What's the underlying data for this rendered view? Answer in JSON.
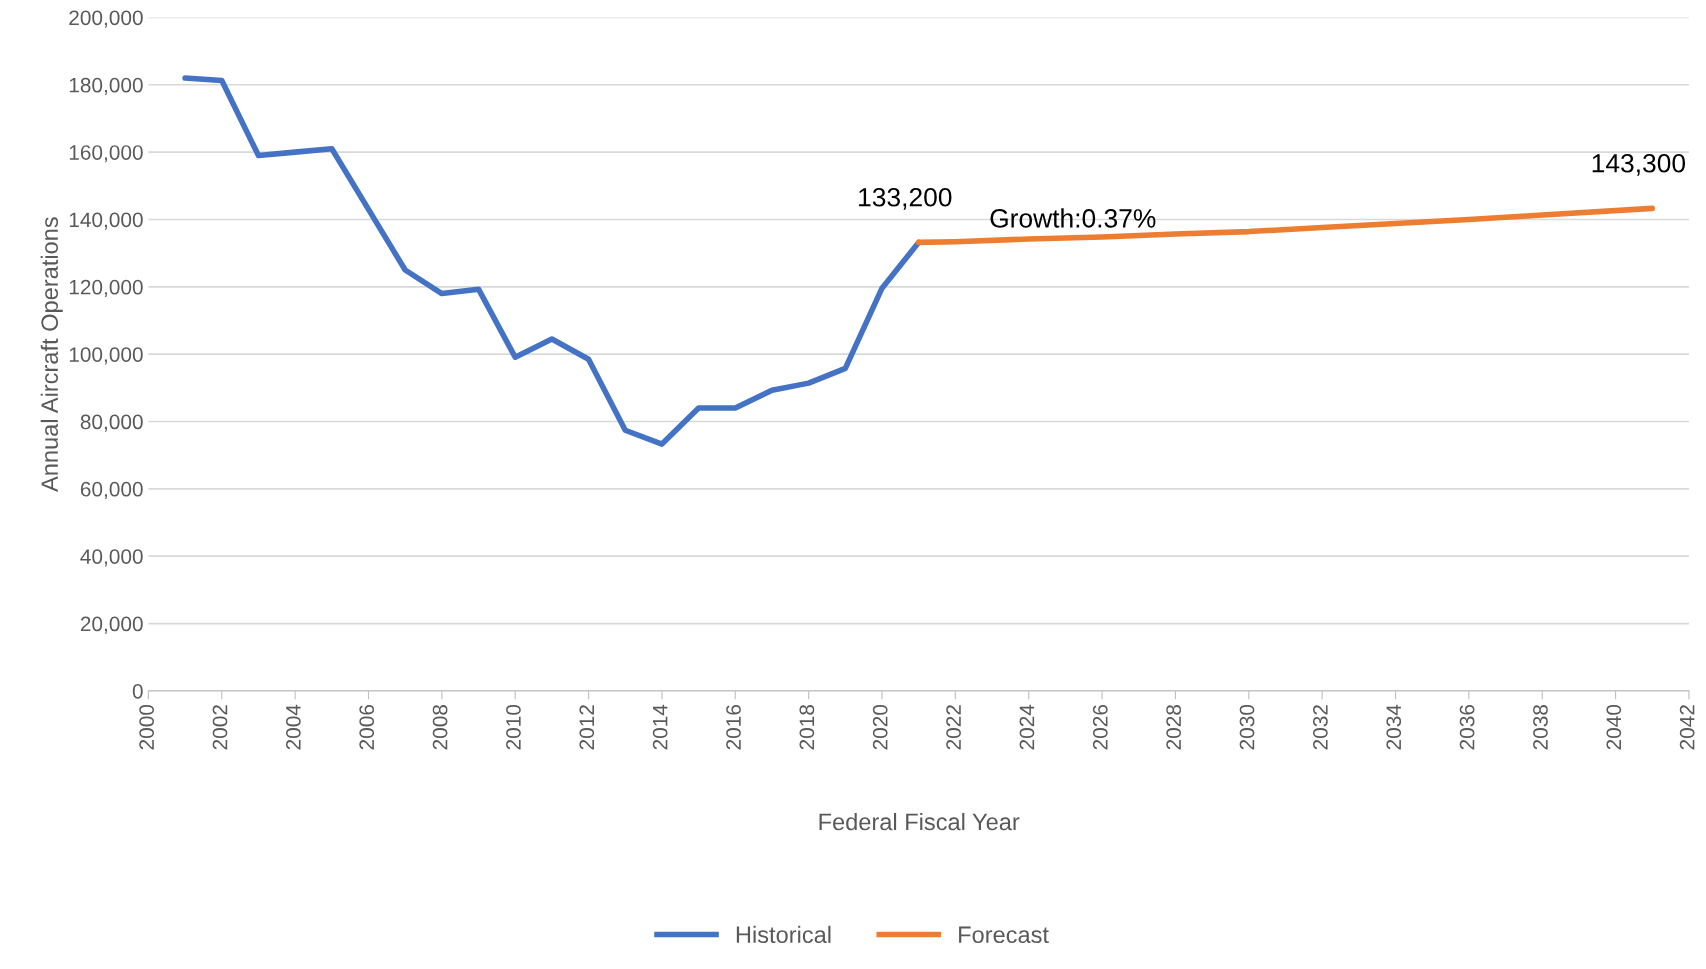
{
  "chart_data": {
    "type": "line",
    "xlabel": "Federal Fiscal Year",
    "ylabel": "Annual Aircraft Operations",
    "series": [
      {
        "name": "Historical",
        "color": "#4472c4",
        "x": [
          2001,
          2002,
          2003,
          2004,
          2005,
          2006,
          2007,
          2008,
          2009,
          2010,
          2011,
          2012,
          2013,
          2014,
          2015,
          2016,
          2017,
          2018,
          2019,
          2020,
          2021
        ],
        "values": [
          182000,
          181300,
          159000,
          160000,
          161000,
          143000,
          125000,
          118000,
          119300,
          99100,
          104500,
          98500,
          77400,
          73300,
          84000,
          84000,
          89300,
          91400,
          95800,
          119600,
          133200
        ]
      },
      {
        "name": "Forecast",
        "color": "#ed7d31",
        "x": [
          2021,
          2022,
          2024,
          2026,
          2028,
          2030,
          2032,
          2034,
          2036,
          2038,
          2041
        ],
        "values": [
          133200,
          133400,
          134200,
          134800,
          135700,
          136400,
          137600,
          138800,
          140000,
          141300,
          143300
        ]
      }
    ],
    "xlim": [
      2000,
      2042
    ],
    "xticks": [
      2000,
      2002,
      2004,
      2006,
      2008,
      2010,
      2012,
      2014,
      2016,
      2018,
      2020,
      2022,
      2024,
      2026,
      2028,
      2030,
      2032,
      2034,
      2036,
      2038,
      2040,
      2042
    ],
    "ylim": [
      0,
      200000
    ],
    "yticks": [
      {
        "value": 0,
        "label": "0"
      },
      {
        "value": 20000,
        "label": "20,000"
      },
      {
        "value": 40000,
        "label": "40,000"
      },
      {
        "value": 60000,
        "label": "60,000"
      },
      {
        "value": 80000,
        "label": "80,000"
      },
      {
        "value": 100000,
        "label": "100,000"
      },
      {
        "value": 120000,
        "label": "120,000"
      },
      {
        "value": 140000,
        "label": "140,000"
      },
      {
        "value": 160000,
        "label": "160,000"
      },
      {
        "value": 180000,
        "label": "180,000"
      },
      {
        "value": 200000,
        "label": "200,000"
      }
    ],
    "annotations": [
      {
        "text": "133,200",
        "x": 2021,
        "y": 133200
      },
      {
        "text": "143,300",
        "x": 2041,
        "y": 143300
      },
      "Growth:0.37%"
    ],
    "grid": "y",
    "legend": "bottom",
    "marker": "none",
    "line_style": "solid"
  }
}
